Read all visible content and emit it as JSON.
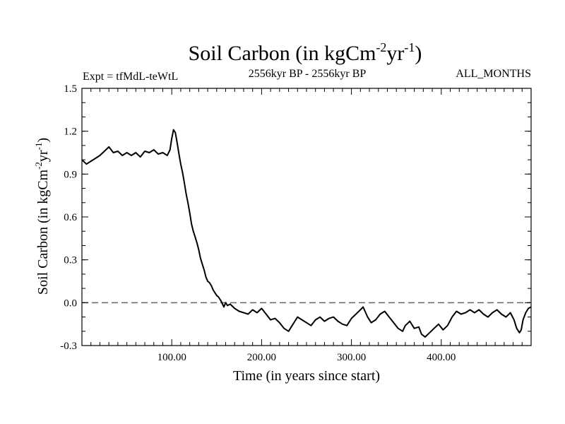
{
  "chart_data": {
    "type": "line",
    "title": "Soil Carbon (in kgCm",
    "title_unit_sup1": "-2",
    "title_unit_mid": "yr",
    "title_unit_sup2": "-1",
    "title_close": ")",
    "experiment_label": "Expt = tfMdL-teWtL",
    "period_label": "2556kyr BP - 2556kyr BP",
    "season_label": "ALL_MONTHS",
    "xlabel": "Time (in years since start)",
    "ylabel": "Soil Carbon (in kgCm",
    "ylabel_sup1": "-2",
    "ylabel_mid": "yr",
    "ylabel_sup2": "-1",
    "ylabel_close": ")",
    "xlim": [
      0,
      500
    ],
    "ylim": [
      -0.3,
      1.5
    ],
    "x_ticks": [
      100,
      200,
      300,
      400
    ],
    "x_tick_labels": [
      "100.00",
      "200.00",
      "300.00",
      "400.00"
    ],
    "y_ticks": [
      -0.3,
      0.0,
      0.3,
      0.6,
      0.9,
      1.2,
      1.5
    ],
    "y_tick_labels": [
      "-0.3",
      "0.0",
      "0.3",
      "0.6",
      "0.9",
      "1.2",
      "1.5"
    ],
    "reference_line": {
      "y": 0.0,
      "style": "dashed",
      "color": "#666666"
    },
    "line_color": "#000000",
    "series": [
      {
        "name": "Soil Carbon",
        "points": [
          [
            0,
            1.0
          ],
          [
            5,
            0.97
          ],
          [
            10,
            0.99
          ],
          [
            15,
            1.01
          ],
          [
            20,
            1.03
          ],
          [
            25,
            1.06
          ],
          [
            30,
            1.09
          ],
          [
            35,
            1.05
          ],
          [
            40,
            1.06
          ],
          [
            45,
            1.03
          ],
          [
            50,
            1.05
          ],
          [
            55,
            1.03
          ],
          [
            60,
            1.05
          ],
          [
            65,
            1.02
          ],
          [
            70,
            1.06
          ],
          [
            75,
            1.05
          ],
          [
            80,
            1.07
          ],
          [
            85,
            1.04
          ],
          [
            90,
            1.05
          ],
          [
            95,
            1.03
          ],
          [
            98,
            1.07
          ],
          [
            100,
            1.15
          ],
          [
            102,
            1.21
          ],
          [
            104,
            1.19
          ],
          [
            106,
            1.12
          ],
          [
            108,
            1.04
          ],
          [
            110,
            0.97
          ],
          [
            112,
            0.91
          ],
          [
            114,
            0.84
          ],
          [
            116,
            0.76
          ],
          [
            118,
            0.7
          ],
          [
            120,
            0.63
          ],
          [
            122,
            0.55
          ],
          [
            124,
            0.5
          ],
          [
            126,
            0.46
          ],
          [
            128,
            0.42
          ],
          [
            130,
            0.37
          ],
          [
            132,
            0.31
          ],
          [
            134,
            0.27
          ],
          [
            136,
            0.23
          ],
          [
            138,
            0.18
          ],
          [
            140,
            0.15
          ],
          [
            142,
            0.14
          ],
          [
            144,
            0.12
          ],
          [
            146,
            0.09
          ],
          [
            148,
            0.07
          ],
          [
            150,
            0.05
          ],
          [
            152,
            0.04
          ],
          [
            155,
            0.01
          ],
          [
            158,
            -0.03
          ],
          [
            160,
            0.0
          ],
          [
            162,
            -0.02
          ],
          [
            165,
            -0.01
          ],
          [
            170,
            -0.04
          ],
          [
            175,
            -0.06
          ],
          [
            180,
            -0.07
          ],
          [
            185,
            -0.08
          ],
          [
            190,
            -0.05
          ],
          [
            195,
            -0.07
          ],
          [
            200,
            -0.04
          ],
          [
            205,
            -0.08
          ],
          [
            210,
            -0.12
          ],
          [
            215,
            -0.11
          ],
          [
            220,
            -0.14
          ],
          [
            225,
            -0.18
          ],
          [
            230,
            -0.2
          ],
          [
            235,
            -0.15
          ],
          [
            240,
            -0.1
          ],
          [
            245,
            -0.12
          ],
          [
            250,
            -0.14
          ],
          [
            255,
            -0.16
          ],
          [
            260,
            -0.12
          ],
          [
            265,
            -0.1
          ],
          [
            270,
            -0.13
          ],
          [
            275,
            -0.11
          ],
          [
            280,
            -0.1
          ],
          [
            285,
            -0.13
          ],
          [
            290,
            -0.15
          ],
          [
            295,
            -0.16
          ],
          [
            300,
            -0.11
          ],
          [
            305,
            -0.08
          ],
          [
            310,
            -0.05
          ],
          [
            313,
            -0.03
          ],
          [
            318,
            -0.1
          ],
          [
            322,
            -0.14
          ],
          [
            327,
            -0.12
          ],
          [
            332,
            -0.08
          ],
          [
            337,
            -0.06
          ],
          [
            342,
            -0.1
          ],
          [
            347,
            -0.14
          ],
          [
            352,
            -0.18
          ],
          [
            357,
            -0.2
          ],
          [
            360,
            -0.16
          ],
          [
            365,
            -0.13
          ],
          [
            370,
            -0.18
          ],
          [
            375,
            -0.17
          ],
          [
            378,
            -0.22
          ],
          [
            382,
            -0.24
          ],
          [
            387,
            -0.21
          ],
          [
            392,
            -0.18
          ],
          [
            397,
            -0.15
          ],
          [
            402,
            -0.19
          ],
          [
            407,
            -0.16
          ],
          [
            412,
            -0.1
          ],
          [
            417,
            -0.06
          ],
          [
            422,
            -0.08
          ],
          [
            427,
            -0.07
          ],
          [
            432,
            -0.05
          ],
          [
            437,
            -0.07
          ],
          [
            442,
            -0.05
          ],
          [
            447,
            -0.08
          ],
          [
            452,
            -0.1
          ],
          [
            457,
            -0.07
          ],
          [
            462,
            -0.05
          ],
          [
            467,
            -0.08
          ],
          [
            472,
            -0.1
          ],
          [
            477,
            -0.07
          ],
          [
            481,
            -0.12
          ],
          [
            484,
            -0.18
          ],
          [
            487,
            -0.21
          ],
          [
            489,
            -0.19
          ],
          [
            491,
            -0.12
          ],
          [
            494,
            -0.07
          ],
          [
            497,
            -0.04
          ],
          [
            500,
            -0.03
          ]
        ]
      }
    ]
  }
}
